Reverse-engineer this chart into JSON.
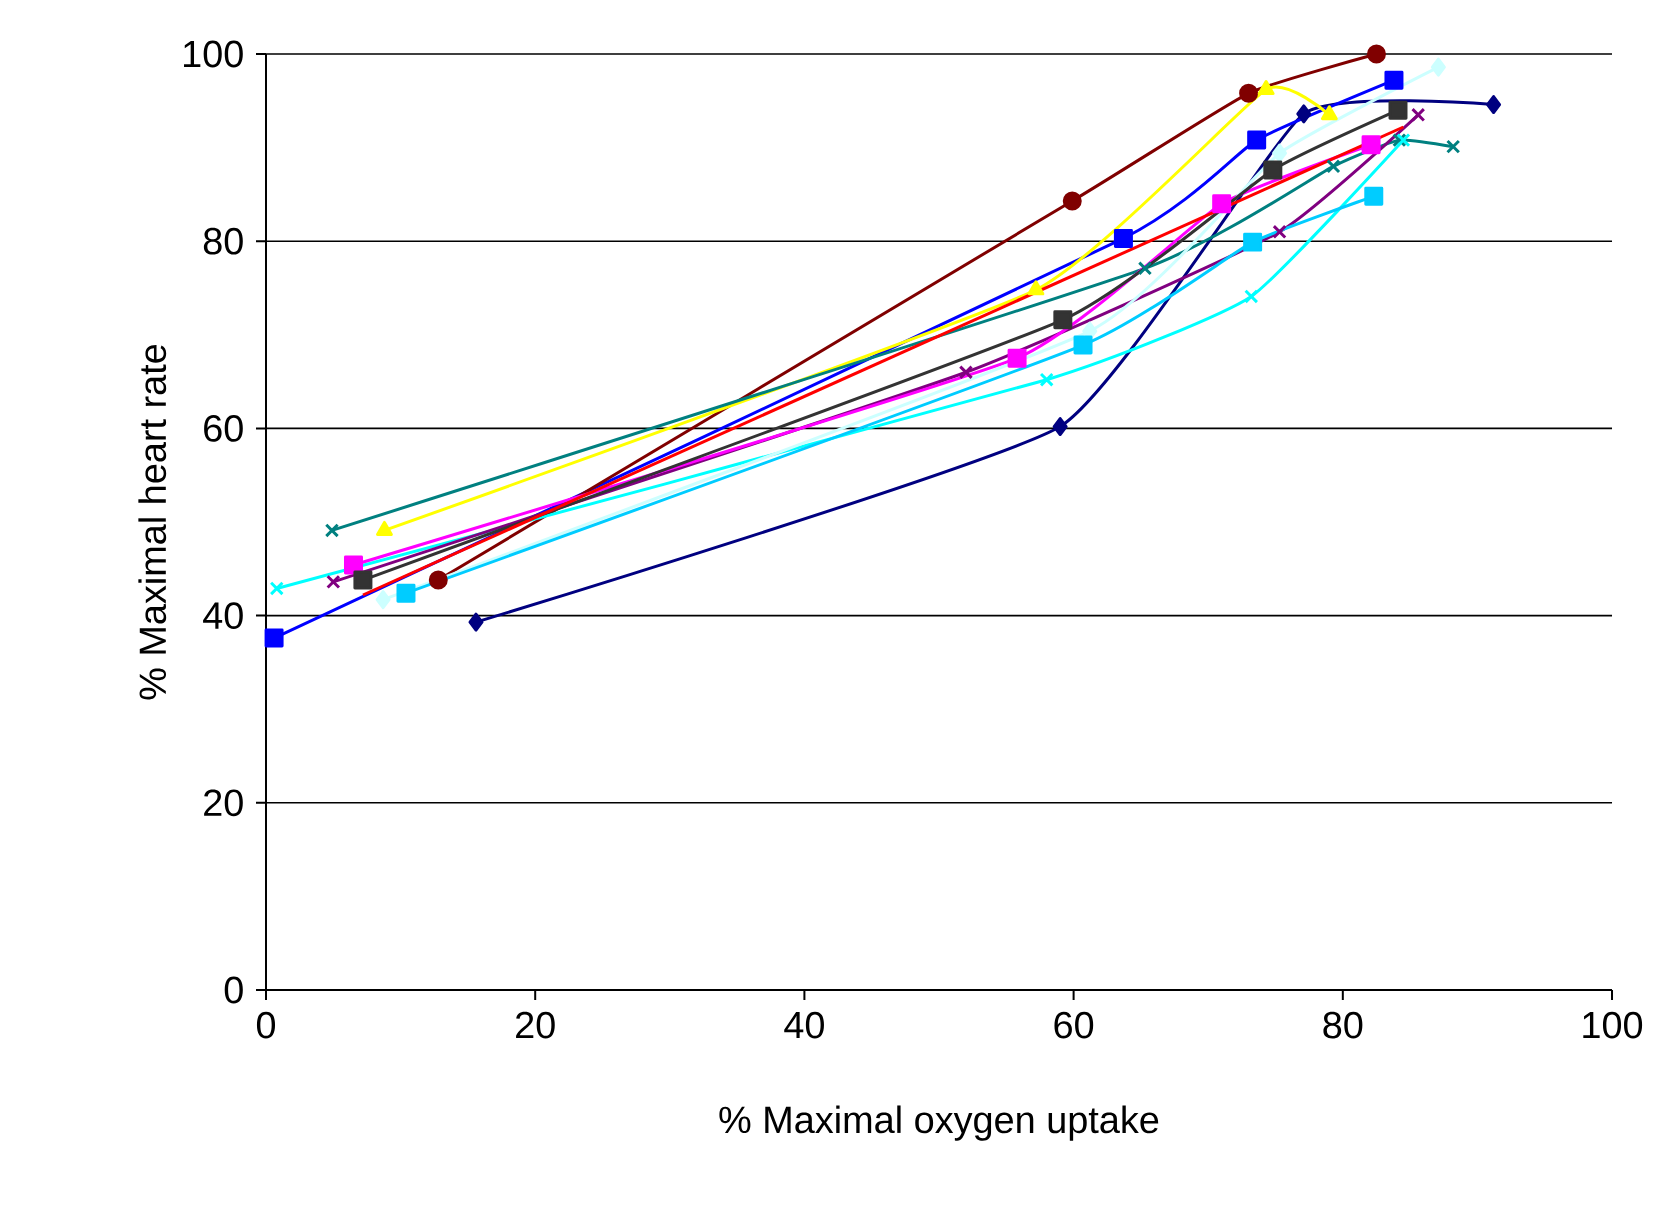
{
  "chart_data": {
    "type": "line",
    "xlabel": "% Maximal oxygen uptake",
    "ylabel": "% Maximal heart rate",
    "xlim": [
      0,
      100
    ],
    "ylim": [
      0,
      100
    ],
    "xticks": [
      0,
      20,
      40,
      60,
      80,
      100
    ],
    "yticks": [
      0,
      20,
      40,
      60,
      80,
      100
    ],
    "grid": "y",
    "line_style": "solid",
    "series": [
      {
        "color": "#000080",
        "marker": "diamond",
        "x": [
          15.6,
          59,
          77.1,
          91.2
        ],
        "values": [
          39.3,
          60.2,
          93.6,
          94.6
        ]
      },
      {
        "color": "#0000ff",
        "marker": "square",
        "x": [
          0.6,
          63.7,
          73.6,
          83.8
        ],
        "values": [
          37.6,
          80.3,
          90.8,
          97.2
        ]
      },
      {
        "color": "#800000",
        "marker": "circle",
        "x": [
          12.8,
          59.9,
          73,
          82.5
        ],
        "values": [
          43.8,
          84.3,
          95.8,
          100
        ]
      },
      {
        "color": "#ffff00",
        "marker": "triangle",
        "x": [
          8.8,
          57.2,
          74.3,
          79
        ],
        "values": [
          49.1,
          74.8,
          96.2,
          93.5
        ]
      },
      {
        "color": "#008080",
        "marker": "cross",
        "x": [
          4.9,
          65.3,
          79.3,
          84.2,
          88.2
        ],
        "values": [
          49.1,
          77.1,
          88,
          90.8,
          90.1
        ]
      },
      {
        "color": "#00ffff",
        "marker": "cross",
        "x": [
          0.8,
          58,
          73.2,
          84.5
        ],
        "values": [
          42.9,
          65.2,
          74.1,
          90.8
        ]
      },
      {
        "color": "#800080",
        "marker": "cross",
        "x": [
          5,
          52,
          75.3,
          85.6
        ],
        "values": [
          43.6,
          66,
          81,
          93.5
        ]
      },
      {
        "color": "#ff00ff",
        "marker": "square",
        "x": [
          6.5,
          55.8,
          71,
          82.1
        ],
        "values": [
          45.4,
          67.5,
          84,
          90.3
        ]
      },
      {
        "color": "#ccffff",
        "marker": "diamond",
        "x": [
          8.7,
          61.2,
          75.3,
          87.1
        ],
        "values": [
          41.7,
          70.4,
          89.4,
          98.6
        ]
      },
      {
        "color": "#00ccff",
        "marker": "square",
        "x": [
          10.4,
          60.7,
          73.3,
          82.3
        ],
        "values": [
          42.4,
          68.9,
          79.9,
          84.8
        ]
      },
      {
        "color": "#333333",
        "marker": "square",
        "x": [
          7.2,
          59.2,
          74.8,
          84.1
        ],
        "values": [
          43.8,
          71.6,
          87.6,
          94
        ]
      },
      {
        "color": "#ff0000",
        "marker": "none",
        "x": [
          7.2,
          84.5
        ],
        "values": [
          42.2,
          92.2
        ]
      }
    ]
  }
}
